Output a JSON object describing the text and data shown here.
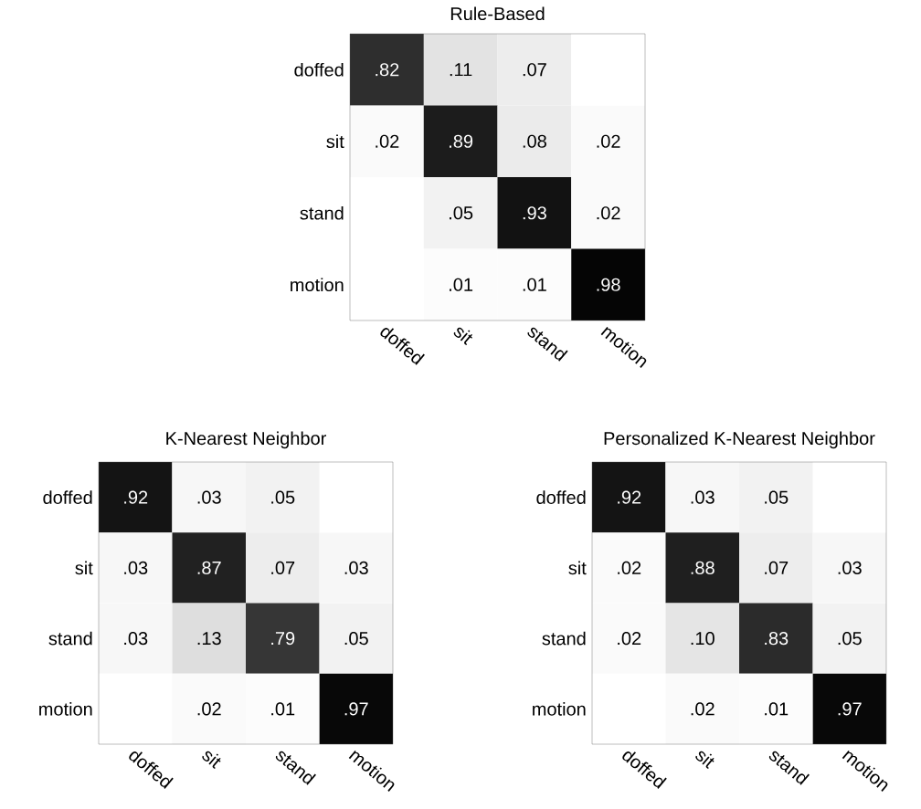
{
  "chart_data": [
    {
      "type": "heatmap",
      "title": "Rule-Based",
      "categories": [
        "doffed",
        "sit",
        "stand",
        "motion"
      ],
      "y_categories": [
        "doffed",
        "sit",
        "stand",
        "motion"
      ],
      "cells": [
        [
          0.82,
          0.11,
          0.07,
          null
        ],
        [
          0.02,
          0.89,
          0.08,
          0.02
        ],
        [
          null,
          0.05,
          0.93,
          0.02
        ],
        [
          null,
          0.01,
          0.01,
          0.98
        ]
      ],
      "cell_labels": [
        [
          ".82",
          ".11",
          ".07",
          null
        ],
        [
          ".02",
          ".89",
          ".08",
          ".02"
        ],
        [
          null,
          ".05",
          ".93",
          ".02"
        ],
        [
          null,
          ".01",
          ".01",
          ".98"
        ]
      ]
    },
    {
      "type": "heatmap",
      "title": "K-Nearest Neighbor",
      "categories": [
        "doffed",
        "sit",
        "stand",
        "motion"
      ],
      "y_categories": [
        "doffed",
        "sit",
        "stand",
        "motion"
      ],
      "cells": [
        [
          0.92,
          0.03,
          0.05,
          null
        ],
        [
          0.03,
          0.87,
          0.07,
          0.03
        ],
        [
          0.03,
          0.13,
          0.79,
          0.05
        ],
        [
          null,
          0.02,
          0.01,
          0.97
        ]
      ],
      "cell_labels": [
        [
          ".92",
          ".03",
          ".05",
          null
        ],
        [
          ".03",
          ".87",
          ".07",
          ".03"
        ],
        [
          ".03",
          ".13",
          ".79",
          ".05"
        ],
        [
          null,
          ".02",
          ".01",
          ".97"
        ]
      ]
    },
    {
      "type": "heatmap",
      "title": "Personalized K-Nearest Neighbor",
      "categories": [
        "doffed",
        "sit",
        "stand",
        "motion"
      ],
      "y_categories": [
        "doffed",
        "sit",
        "stand",
        "motion"
      ],
      "cells": [
        [
          0.92,
          0.03,
          0.05,
          null
        ],
        [
          0.02,
          0.88,
          0.07,
          0.03
        ],
        [
          0.02,
          0.1,
          0.83,
          0.05
        ],
        [
          null,
          0.02,
          0.01,
          0.97
        ]
      ],
      "cell_labels": [
        [
          ".92",
          ".03",
          ".05",
          null
        ],
        [
          ".02",
          ".88",
          ".07",
          ".03"
        ],
        [
          ".02",
          ".10",
          ".83",
          ".05"
        ],
        [
          null,
          ".02",
          ".01",
          ".97"
        ]
      ]
    }
  ]
}
